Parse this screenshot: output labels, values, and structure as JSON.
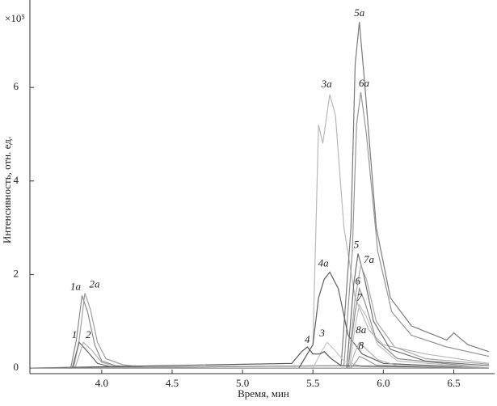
{
  "chart_data": {
    "type": "line",
    "x_label": "Время, мин",
    "y_label": "Интенсивность, отн. ед.",
    "y_scale_label": "×10⁵",
    "xlim": [
      3.49,
      6.79
    ],
    "ylim": [
      -0.12,
      7.87
    ],
    "xticks": [
      {
        "value": 4,
        "label": "4.0"
      },
      {
        "value": 4.5,
        "label": "4.5"
      },
      {
        "value": 5,
        "label": "5.0"
      },
      {
        "value": 5.5,
        "label": "5.5"
      },
      {
        "value": 6,
        "label": "6.0"
      },
      {
        "value": 6.5,
        "label": "6.5"
      }
    ],
    "yticks": [
      0,
      2,
      4,
      6
    ],
    "series": [
      {
        "name": "1a",
        "color": "#8a8a8a",
        "x": [
          3.5,
          3.78,
          3.82,
          3.86,
          3.9,
          3.95,
          4.0,
          4.1,
          4.3,
          6.75
        ],
        "values": [
          0,
          0,
          0.6,
          1.55,
          1.2,
          0.5,
          0.15,
          0.05,
          0,
          0
        ]
      },
      {
        "name": "2a",
        "color": "#a0a0a0",
        "x": [
          3.5,
          3.8,
          3.84,
          3.88,
          3.92,
          3.97,
          4.03,
          4.15,
          4.35,
          6.75
        ],
        "values": [
          0,
          0,
          0.6,
          1.6,
          1.25,
          0.55,
          0.2,
          0.07,
          0,
          0
        ]
      },
      {
        "name": "1",
        "color": "#6a6a6a",
        "x": [
          3.5,
          3.79,
          3.84,
          3.9,
          3.97,
          4.1,
          6.75
        ],
        "values": [
          0,
          0,
          0.55,
          0.35,
          0.1,
          0,
          0
        ]
      },
      {
        "name": "2",
        "color": "#b0b0b0",
        "x": [
          3.5,
          3.81,
          3.87,
          3.93,
          4.0,
          4.15,
          6.75
        ],
        "values": [
          0,
          0,
          0.55,
          0.38,
          0.12,
          0,
          0
        ]
      },
      {
        "name": "3a",
        "color": "#b8b8b8",
        "x": [
          3.5,
          5.4,
          5.5,
          5.54,
          5.57,
          5.62,
          5.66,
          5.72,
          5.8,
          5.9,
          6.0,
          6.3,
          6.75
        ],
        "values": [
          0,
          0,
          0.5,
          5.2,
          4.8,
          5.85,
          5.4,
          3.0,
          1.5,
          0.8,
          0.5,
          0.3,
          0.1
        ]
      },
      {
        "name": "5a",
        "color": "#7a7a7a",
        "x": [
          3.5,
          5.7,
          5.77,
          5.8,
          5.83,
          5.87,
          5.95,
          6.05,
          6.2,
          6.45,
          6.5,
          6.6,
          6.75
        ],
        "values": [
          0,
          0.05,
          3.0,
          6.5,
          7.4,
          6.0,
          3.0,
          1.5,
          0.9,
          0.6,
          0.75,
          0.5,
          0.35
        ]
      },
      {
        "name": "6a",
        "color": "#959595",
        "x": [
          3.5,
          5.72,
          5.78,
          5.81,
          5.84,
          5.88,
          5.96,
          6.06,
          6.2,
          6.45,
          6.75
        ],
        "values": [
          0,
          0.05,
          2.5,
          5.2,
          5.9,
          5.0,
          2.5,
          1.2,
          0.7,
          0.45,
          0.25
        ]
      },
      {
        "name": "4a",
        "color": "#5e5e5e",
        "x": [
          3.5,
          5.4,
          5.5,
          5.54,
          5.58,
          5.62,
          5.68,
          5.75,
          5.85,
          6.0,
          6.75
        ],
        "values": [
          0,
          0,
          0.5,
          1.5,
          1.9,
          2.05,
          1.7,
          0.7,
          0.3,
          0.1,
          0
        ]
      },
      {
        "name": "5",
        "color": "#6e6e6e",
        "x": [
          3.5,
          5.74,
          5.79,
          5.82,
          5.86,
          5.93,
          6.05,
          6.3,
          6.75
        ],
        "values": [
          0,
          0,
          1.8,
          2.45,
          2.0,
          1.0,
          0.4,
          0.15,
          0.05
        ]
      },
      {
        "name": "7a",
        "color": "#a8a8a8",
        "x": [
          3.5,
          5.75,
          5.8,
          5.84,
          5.88,
          5.95,
          6.08,
          6.3,
          6.75
        ],
        "values": [
          0,
          0,
          1.5,
          2.2,
          1.9,
          1.0,
          0.45,
          0.2,
          0.08
        ]
      },
      {
        "name": "6",
        "color": "#8e8e8e",
        "x": [
          3.5,
          5.75,
          5.8,
          5.83,
          5.87,
          5.95,
          6.1,
          6.75
        ],
        "values": [
          0,
          0,
          1.2,
          1.7,
          1.4,
          0.6,
          0.2,
          0
        ]
      },
      {
        "name": "7",
        "color": "#c0c0c0",
        "x": [
          3.5,
          5.76,
          5.8,
          5.83,
          5.88,
          5.96,
          6.1,
          6.75
        ],
        "values": [
          0,
          0,
          0.9,
          1.35,
          1.1,
          0.5,
          0.15,
          0
        ]
      },
      {
        "name": "3",
        "color": "#c8c8c8",
        "x": [
          3.5,
          5.5,
          5.56,
          5.6,
          5.65,
          5.72,
          5.85,
          6.75
        ],
        "values": [
          0,
          0,
          0.35,
          0.55,
          0.4,
          0.15,
          0.03,
          0
        ]
      },
      {
        "name": "4",
        "color": "#555555",
        "x": [
          3.5,
          5.35,
          5.42,
          5.46,
          5.5,
          5.55,
          5.58,
          5.63,
          5.7,
          6.75
        ],
        "values": [
          0,
          0.1,
          0.35,
          0.45,
          0.3,
          0.3,
          0.35,
          0.2,
          0.05,
          0
        ]
      },
      {
        "name": "8a",
        "color": "#b4b4b4",
        "x": [
          3.5,
          5.76,
          5.8,
          5.83,
          5.88,
          5.96,
          6.1,
          6.75
        ],
        "values": [
          0,
          0,
          0.35,
          0.55,
          0.4,
          0.18,
          0.05,
          0
        ]
      },
      {
        "name": "8",
        "color": "#9c9c9c",
        "x": [
          3.5,
          5.77,
          5.81,
          5.83,
          5.88,
          5.95,
          6.75
        ],
        "values": [
          0,
          0,
          0.15,
          0.25,
          0.18,
          0.06,
          0
        ]
      }
    ]
  }
}
